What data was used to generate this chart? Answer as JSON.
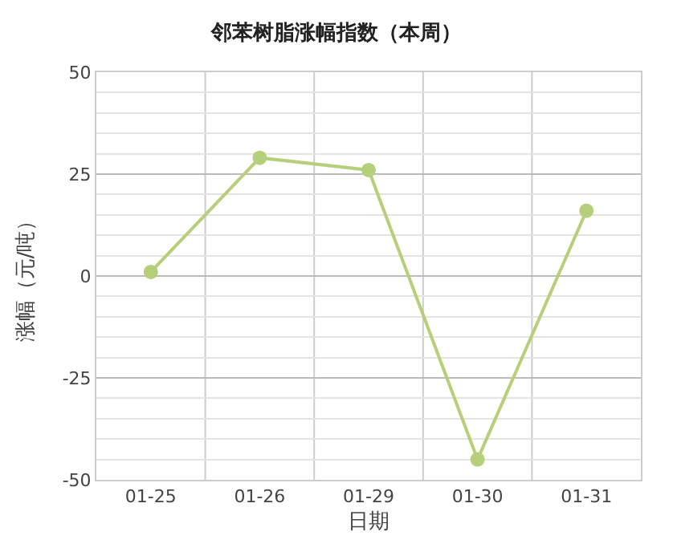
{
  "chart_data": {
    "type": "line",
    "title": "邻苯树脂涨幅指数（本周）",
    "xlabel": "日期",
    "ylabel": "涨幅（元/吨）",
    "categories": [
      "01-25",
      "01-26",
      "01-29",
      "01-30",
      "01-31"
    ],
    "series": [
      {
        "color": "#b5cf7a",
        "values": [
          1,
          29,
          26,
          -45,
          16
        ]
      }
    ],
    "ylim": [
      -50,
      50
    ],
    "yticks": [
      -50,
      -25,
      0,
      25,
      50
    ],
    "grid": true,
    "marker": "circle",
    "line_style": "solid"
  }
}
